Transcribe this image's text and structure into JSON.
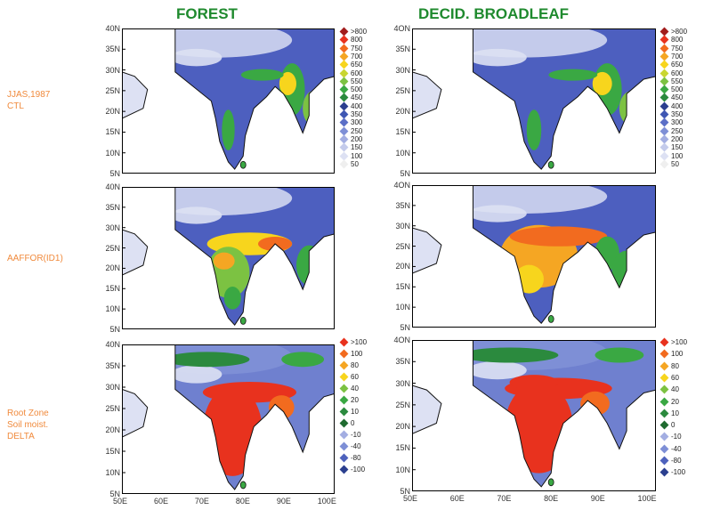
{
  "columns": [
    {
      "title": "FOREST"
    },
    {
      "title": "DECID. BROADLEAF"
    }
  ],
  "rows": [
    {
      "label": "JJAS,1987\nCTL"
    },
    {
      "label": "AAFFOR(ID1)"
    },
    {
      "label": "Root Zone\nSoil moist.\nDELTA"
    }
  ],
  "lat_ticks": [
    "40N",
    "35N",
    "30N",
    "25N",
    "20N",
    "15N",
    "10N",
    "5N"
  ],
  "lat_ticks_alt": [
    "4ON",
    "35N",
    "30N",
    "25N",
    "20N",
    "15N",
    "10N",
    "5N"
  ],
  "lon_ticks": [
    "50E",
    "60E",
    "70E",
    "80E",
    "90E",
    "100E"
  ],
  "legend_absolute": {
    "labels": [
      ">800",
      "800",
      "750",
      "700",
      "650",
      "600",
      "550",
      "500",
      "450",
      "400",
      "350",
      "300",
      "250",
      "200",
      "150",
      "100",
      "50"
    ],
    "colors": [
      "#a21c1c",
      "#e8321e",
      "#f26b1f",
      "#f5a623",
      "#f7d51d",
      "#c9d631",
      "#7cc242",
      "#3aa843",
      "#2b8a3e",
      "#2b3f8f",
      "#3f57b3",
      "#5b6fc7",
      "#7e8fd6",
      "#a3aee2",
      "#c4cbeb",
      "#dde1f3",
      "#efefef"
    ]
  },
  "legend_delta": {
    "labels": [
      ">100",
      "100",
      "80",
      "60",
      "40",
      "20",
      "10",
      "0",
      "-10",
      "-40",
      "-80",
      "-100"
    ],
    "colors": [
      "#e8321e",
      "#f26b1f",
      "#f5a623",
      "#f7d51d",
      "#7cc242",
      "#3aa843",
      "#2b8a3e",
      "#1f6b30",
      "#a3aee2",
      "#7e8fd6",
      "#4e62bd",
      "#2b3f8f"
    ]
  }
}
